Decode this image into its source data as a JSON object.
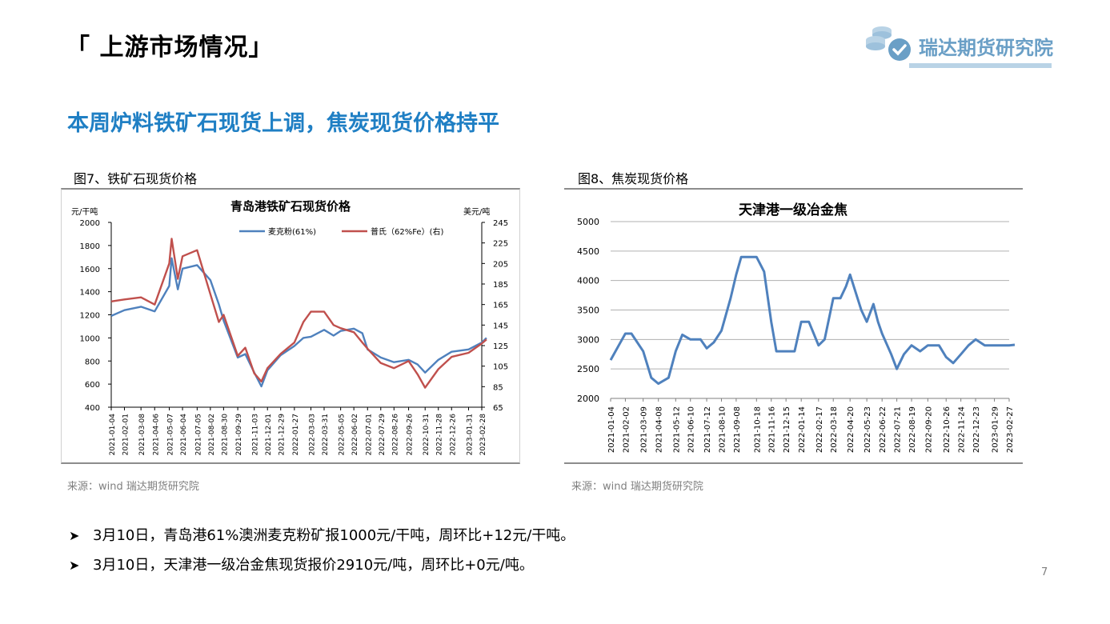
{
  "page": {
    "title": "「 上游市场情况」",
    "headline": "本周炉料铁矿石现货上调，焦炭现货价格持平",
    "page_number": "7"
  },
  "logo": {
    "text": "瑞达期货研究院",
    "icon": "coins-check-icon",
    "color": "#6a9fc6"
  },
  "figure7": {
    "caption": "图7、铁矿石现货价格",
    "source": "来源：wind   瑞达期货研究院"
  },
  "figure8": {
    "caption": "图8、焦炭现货价格",
    "source": "来源：wind   瑞达期货研究院"
  },
  "bullets": [
    {
      "text": "3月10日，青岛港61%澳洲麦克粉矿报1000元/干吨，周环比+12元/干吨。"
    },
    {
      "text": "3月10日，天津港一级冶金焦现货报价2910元/吨，周环比+0元/吨。"
    }
  ],
  "chart_data": [
    {
      "type": "line",
      "title": "青岛港铁矿石现货价格",
      "ylabel_left": "元/干吨",
      "ylabel_right": "美元/吨",
      "ylim_left": [
        400,
        2000
      ],
      "ylim_right": [
        65,
        245
      ],
      "yticks_left": [
        400,
        600,
        800,
        1000,
        1200,
        1400,
        1600,
        1800,
        2000
      ],
      "yticks_right": [
        65,
        85,
        105,
        125,
        145,
        165,
        185,
        205,
        225,
        245
      ],
      "xticks": [
        "2021-01-04",
        "2021-02-01",
        "2021-03-08",
        "2021-04-06",
        "2021-05-07",
        "2021-06-04",
        "2021-07-05",
        "2021-08-02",
        "2021-08-30",
        "2021-09-29",
        "2021-11-03",
        "2021-12-01",
        "2021-12-29",
        "2022-01-27",
        "2022-03-03",
        "2022-03-31",
        "2022-05-05",
        "2022-06-02",
        "2022-07-01",
        "2022-07-29",
        "2022-08-26",
        "2022-09-26",
        "2022-10-31",
        "2022-11-28",
        "2022-12-26",
        "2023-01-31",
        "2023-02-28"
      ],
      "legend_position": "top-center",
      "grid": false,
      "series": [
        {
          "name": "麦克粉(61%)",
          "axis": "left",
          "color": "#4f81bd",
          "x": [
            "2021-01-04",
            "2021-02-01",
            "2021-03-08",
            "2021-04-06",
            "2021-05-07",
            "2021-05-12",
            "2021-05-25",
            "2021-06-04",
            "2021-07-05",
            "2021-08-02",
            "2021-08-20",
            "2021-08-30",
            "2021-09-29",
            "2021-10-15",
            "2021-11-03",
            "2021-11-18",
            "2021-12-01",
            "2021-12-29",
            "2022-01-27",
            "2022-02-15",
            "2022-03-03",
            "2022-03-31",
            "2022-04-20",
            "2022-05-05",
            "2022-06-02",
            "2022-06-20",
            "2022-07-01",
            "2022-07-29",
            "2022-08-26",
            "2022-09-26",
            "2022-10-15",
            "2022-10-31",
            "2022-11-28",
            "2022-12-26",
            "2023-01-31",
            "2023-02-28",
            "2023-03-10"
          ],
          "values": [
            1190,
            1240,
            1270,
            1230,
            1450,
            1690,
            1420,
            1600,
            1630,
            1500,
            1290,
            1150,
            830,
            860,
            700,
            580,
            720,
            850,
            930,
            1000,
            1010,
            1070,
            1020,
            1060,
            1080,
            1040,
            900,
            830,
            790,
            810,
            770,
            700,
            810,
            880,
            900,
            960,
            1000
          ]
        },
        {
          "name": "普氏（62%Fe）(右)",
          "axis": "right",
          "color": "#c0504d",
          "x": [
            "2021-01-04",
            "2021-02-01",
            "2021-03-08",
            "2021-04-06",
            "2021-05-07",
            "2021-05-12",
            "2021-05-25",
            "2021-06-04",
            "2021-07-05",
            "2021-08-02",
            "2021-08-20",
            "2021-08-30",
            "2021-09-29",
            "2021-10-15",
            "2021-11-03",
            "2021-11-18",
            "2021-12-01",
            "2021-12-29",
            "2022-01-27",
            "2022-02-15",
            "2022-03-03",
            "2022-03-31",
            "2022-04-20",
            "2022-05-05",
            "2022-06-02",
            "2022-06-20",
            "2022-07-01",
            "2022-07-29",
            "2022-08-26",
            "2022-09-26",
            "2022-10-15",
            "2022-10-31",
            "2022-11-28",
            "2022-12-26",
            "2023-01-31",
            "2023-02-28",
            "2023-03-10"
          ],
          "values": [
            168,
            170,
            172,
            165,
            205,
            229,
            190,
            212,
            218,
            175,
            148,
            155,
            115,
            123,
            98,
            90,
            103,
            117,
            128,
            148,
            158,
            158,
            145,
            142,
            138,
            128,
            122,
            108,
            103,
            110,
            97,
            84,
            102,
            114,
            118,
            127,
            131
          ]
        }
      ]
    },
    {
      "type": "line",
      "title": "天津港一级冶金焦",
      "ylim": [
        2000,
        5000
      ],
      "yticks": [
        2000,
        2500,
        3000,
        3500,
        4000,
        4500,
        5000
      ],
      "xticks": [
        "2021-01-04",
        "2021-02-02",
        "2021-03-09",
        "2021-04-08",
        "2021-05-12",
        "2021-06-10",
        "2021-07-12",
        "2021-08-10",
        "2021-09-08",
        "2021-10-18",
        "2021-11-16",
        "2021-12-15",
        "2022-01-14",
        "2022-02-17",
        "2022-03-18",
        "2022-04-20",
        "2022-05-23",
        "2022-06-22",
        "2022-07-21",
        "2022-08-19",
        "2022-09-20",
        "2022-10-26",
        "2022-11-24",
        "2022-12-23",
        "2023-01-29",
        "2023-02-27"
      ],
      "grid": true,
      "series": [
        {
          "name": "",
          "color": "#4f81bd",
          "x": [
            "2021-01-04",
            "2021-01-20",
            "2021-02-02",
            "2021-02-14",
            "2021-03-09",
            "2021-03-25",
            "2021-04-08",
            "2021-04-28",
            "2021-05-12",
            "2021-05-25",
            "2021-06-10",
            "2021-06-30",
            "2021-07-12",
            "2021-07-26",
            "2021-08-10",
            "2021-08-28",
            "2021-09-08",
            "2021-09-18",
            "2021-10-18",
            "2021-11-02",
            "2021-11-16",
            "2021-11-26",
            "2021-12-15",
            "2022-01-01",
            "2022-01-14",
            "2022-01-29",
            "2022-02-17",
            "2022-03-01",
            "2022-03-18",
            "2022-04-01",
            "2022-04-12",
            "2022-04-20",
            "2022-05-01",
            "2022-05-12",
            "2022-05-23",
            "2022-06-05",
            "2022-06-14",
            "2022-06-22",
            "2022-07-10",
            "2022-07-21",
            "2022-08-04",
            "2022-08-19",
            "2022-09-05",
            "2022-09-20",
            "2022-10-12",
            "2022-10-26",
            "2022-11-09",
            "2022-11-24",
            "2022-12-09",
            "2022-12-23",
            "2023-01-10",
            "2023-01-29",
            "2023-02-27",
            "2023-03-10"
          ],
          "values": [
            2650,
            2900,
            3100,
            3100,
            2800,
            2350,
            2250,
            2350,
            2800,
            3080,
            3000,
            3000,
            2850,
            2950,
            3150,
            3700,
            4100,
            4400,
            4400,
            4150,
            3300,
            2800,
            2800,
            2800,
            3300,
            3300,
            2900,
            3000,
            3700,
            3700,
            3900,
            4100,
            3800,
            3500,
            3300,
            3600,
            3300,
            3100,
            2750,
            2500,
            2750,
            2900,
            2800,
            2900,
            2900,
            2700,
            2600,
            2750,
            2900,
            3000,
            2900,
            2900,
            2900,
            2910
          ]
        }
      ]
    }
  ]
}
